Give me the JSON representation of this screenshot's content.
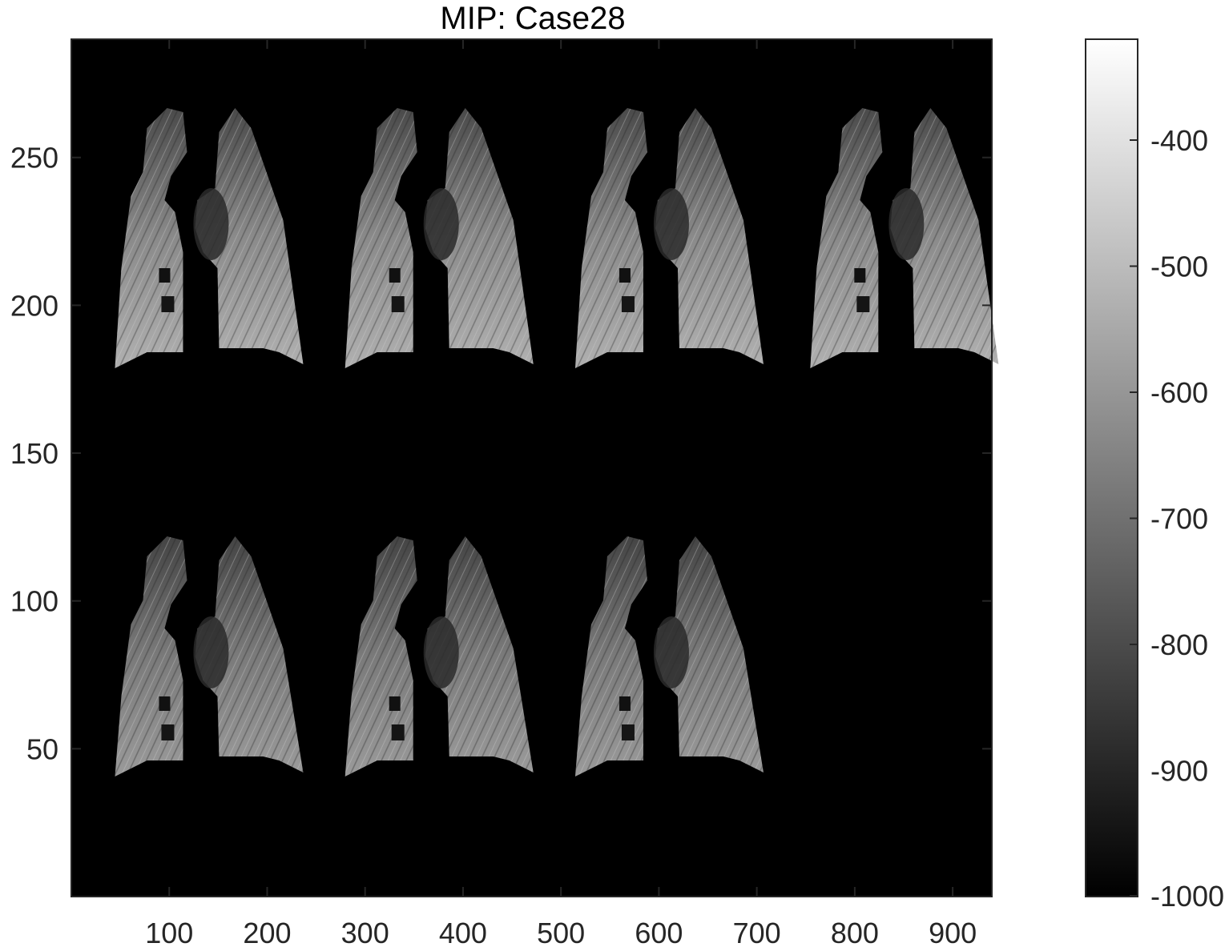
{
  "figure": {
    "title": "MIP: Case28"
  },
  "axes": {
    "x_ticks": [
      100,
      200,
      300,
      400,
      500,
      600,
      700,
      800,
      900
    ],
    "y_ticks": [
      50,
      100,
      150,
      200,
      250
    ],
    "xlim": [
      0,
      940
    ],
    "ylim": [
      0,
      290
    ],
    "background_color": "#000000",
    "frame_color": "#262626"
  },
  "colorbar": {
    "ticks": [
      -400,
      -500,
      -600,
      -700,
      -800,
      -900,
      -1000
    ],
    "range": [
      -1000,
      -320
    ],
    "colormap": "gray"
  },
  "image_content": {
    "description_rows": 2,
    "panels": [
      {
        "row": 1,
        "x_center": 110
      },
      {
        "row": 1,
        "x_center": 345
      },
      {
        "row": 1,
        "x_center": 580
      },
      {
        "row": 1,
        "x_center": 820
      },
      {
        "row": 2,
        "x_center": 110
      },
      {
        "row": 2,
        "x_center": 345
      },
      {
        "row": 2,
        "x_center": 580
      }
    ]
  }
}
